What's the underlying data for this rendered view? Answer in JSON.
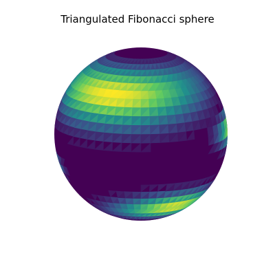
{
  "chart_data": {
    "type": "surface-3d",
    "title": "Triangulated Fibonacci sphere",
    "colormap": "viridis",
    "colormap_stops": [
      "#440154",
      "#3b528b",
      "#21918c",
      "#5ec962",
      "#fde725"
    ],
    "axes_visible": false,
    "bright_regions": [
      {
        "name": "upper band",
        "lon": -25,
        "lat": 38,
        "peak": 1.0,
        "width": 0.55,
        "length": 1.6
      },
      {
        "name": "lower band",
        "lon": 35,
        "lat": -48,
        "peak": 0.95,
        "width": 0.35,
        "length": 1.0
      },
      {
        "name": "right edge",
        "lon": 88,
        "lat": 5,
        "peak": 0.85,
        "width": 0.25,
        "length": 0.6
      },
      {
        "name": "left edge",
        "lon": -88,
        "lat": -20,
        "peak": 0.45,
        "width": 0.18,
        "length": 0.4
      }
    ]
  }
}
